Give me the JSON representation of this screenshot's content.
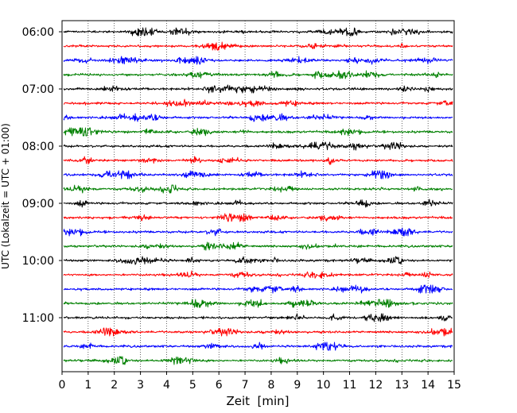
{
  "chart_data": {
    "type": "line",
    "title": "",
    "xlabel": "Zeit  [min]",
    "ylabel": "UTC (Lokalzeit = UTC + 01:00)",
    "xlim": [
      0,
      15
    ],
    "x_ticks": [
      "0",
      "1",
      "2",
      "3",
      "4",
      "5",
      "6",
      "7",
      "8",
      "9",
      "10",
      "11",
      "12",
      "13",
      "14",
      "15"
    ],
    "y_ticks": [
      "06:00",
      "07:00",
      "08:00",
      "09:00",
      "10:00",
      "11:00"
    ],
    "grid": "vertical dotted lines at each minute",
    "trace_interval_minutes": 15,
    "trace_start": "06:00",
    "trace_count": 24,
    "trace_colors": [
      "#000000",
      "#ff0000",
      "#0000ff",
      "#008000"
    ],
    "legend": "none"
  }
}
